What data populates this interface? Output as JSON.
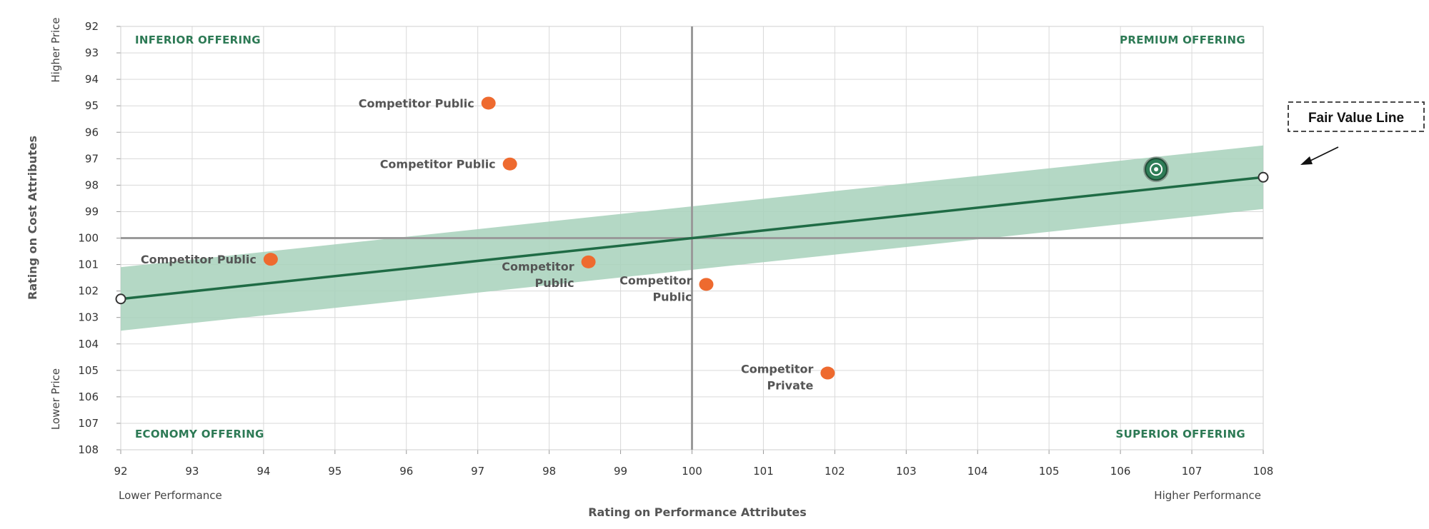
{
  "chart_data": {
    "type": "scatter",
    "xlabel": "Rating on Performance Attributes",
    "ylabel": "Rating on Cost Attributes",
    "x_edge_labels": {
      "left": "Lower Performance",
      "right": "Higher Performance"
    },
    "y_edge_labels": {
      "top": "Higher Price",
      "bottom": "Lower Price"
    },
    "xlim": [
      92,
      108
    ],
    "ylim": [
      92,
      108
    ],
    "y_inverted": true,
    "x_ticks": [
      "92",
      "93",
      "94",
      "95",
      "96",
      "97",
      "98",
      "99",
      "100",
      "101",
      "102",
      "103",
      "104",
      "105",
      "106",
      "107",
      "108"
    ],
    "y_ticks": [
      "92",
      "93",
      "94",
      "95",
      "96",
      "97",
      "98",
      "99",
      "100",
      "101",
      "102",
      "103",
      "104",
      "105",
      "106",
      "107",
      "108"
    ],
    "grid": true,
    "crosshair": {
      "x": 100,
      "y": 100
    },
    "quadrants": {
      "top_left": "INFERIOR OFFERING",
      "top_right": "PREMIUM OFFERING",
      "bottom_left": "ECONOMY OFFERING",
      "bottom_right": "SUPERIOR OFFERING"
    },
    "fair_value_line": {
      "label": "Fair Value Line",
      "x": [
        92,
        108
      ],
      "y": [
        102.3,
        97.7
      ],
      "band_upper": [
        101.1,
        96.5
      ],
      "band_lower": [
        103.5,
        98.9
      ],
      "color": "#1f6b45",
      "band_color": "#a7d1bb"
    },
    "highlight_point": {
      "x": 106.5,
      "y": 97.4,
      "color": "#2e7d57"
    },
    "points_color": "#ee6a2f",
    "points": [
      {
        "x": 97.15,
        "y": 94.9,
        "label": [
          "Competitor Public"
        ],
        "label_pos": "left"
      },
      {
        "x": 97.45,
        "y": 97.2,
        "label": [
          "Competitor Public"
        ],
        "label_pos": "left"
      },
      {
        "x": 94.1,
        "y": 100.8,
        "label": [
          "Competitor Public"
        ],
        "label_pos": "left"
      },
      {
        "x": 98.55,
        "y": 100.9,
        "label": [
          "Competitor",
          "Public"
        ],
        "label_pos": "below-left"
      },
      {
        "x": 100.2,
        "y": 101.75,
        "label": [
          "Competitor",
          "Public"
        ],
        "label_pos": "left-two"
      },
      {
        "x": 101.9,
        "y": 105.1,
        "label": [
          "Competitor",
          "Private"
        ],
        "label_pos": "left-two"
      }
    ]
  }
}
